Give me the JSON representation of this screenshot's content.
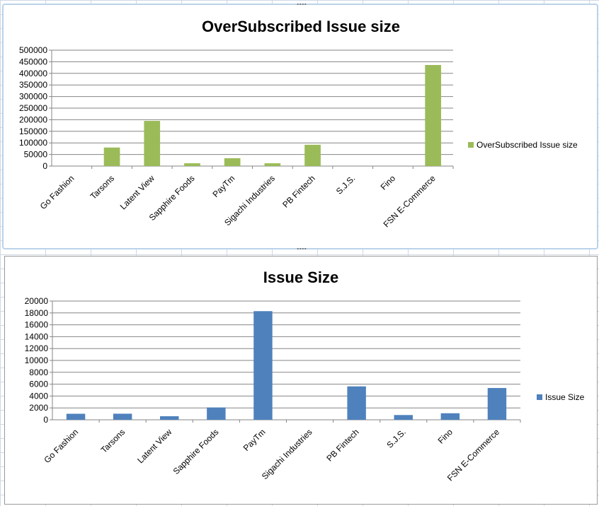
{
  "chart_data": [
    {
      "type": "bar",
      "title": "OverSubscribed Issue size",
      "categories": [
        "Go Fashion",
        "Tarsons",
        "Latent View",
        "Sapphire Foods",
        "PayTm",
        "Sigachi Industries",
        "PB Fintech",
        "S.J.S.",
        "Fino",
        "FSN E-Commerce"
      ],
      "series": [
        {
          "name": "OverSubscribed Issue size",
          "values": [
            0,
            80000,
            195000,
            12000,
            34000,
            12000,
            92000,
            0,
            0,
            436000
          ],
          "color": "#9bbb59"
        }
      ],
      "ylim": [
        0,
        500000
      ],
      "yticks": [
        "0",
        "50000",
        "100000",
        "150000",
        "200000",
        "250000",
        "300000",
        "350000",
        "400000",
        "450000",
        "500000"
      ],
      "grid": true,
      "legend": "right"
    },
    {
      "type": "bar",
      "title": "Issue Size",
      "categories": [
        "Go Fashion",
        "Tarsons",
        "Latent View",
        "Sapphire Foods",
        "PayTm",
        "Sigachi Industries",
        "PB Fintech",
        "S.J.S.",
        "Fino",
        "FSN E-Commerce"
      ],
      "series": [
        {
          "name": "Issue Size",
          "values": [
            1013,
            1024,
            600,
            2073,
            18300,
            0,
            5625,
            800,
            1100,
            5352
          ],
          "color": "#4f81bd"
        }
      ],
      "ylim": [
        0,
        20000
      ],
      "yticks": [
        "0",
        "2000",
        "4000",
        "6000",
        "8000",
        "10000",
        "12000",
        "14000",
        "16000",
        "18000",
        "20000"
      ],
      "grid": true,
      "legend": "right"
    }
  ]
}
